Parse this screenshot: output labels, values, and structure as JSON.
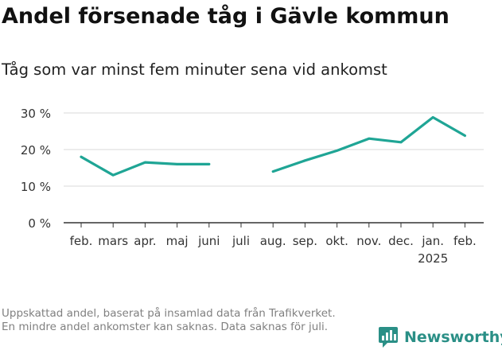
{
  "header": {
    "title": "Andel försenade tåg i Gävle kommun",
    "subtitle": "Tåg som var minst fem minuter sena vid ankomst"
  },
  "footer": {
    "note": "Uppskattad andel, baserat på insamlad data från Trafikverket. En mindre andel ankomster kan saknas. Data saknas för juli.",
    "brand": "Newsworthy"
  },
  "colors": {
    "line": "#1fa595",
    "grid": "#d9d9d9",
    "axis": "#333333",
    "brand": "#2a8f86"
  },
  "chart_data": {
    "type": "line",
    "categories": [
      "feb.",
      "mars",
      "apr.",
      "maj",
      "juni",
      "juli",
      "aug.",
      "sep.",
      "okt.",
      "nov.",
      "dec.",
      "jan.",
      "feb."
    ],
    "year_label": {
      "index": 11,
      "text": "2025"
    },
    "series": [
      {
        "values": [
          18,
          13,
          16.5,
          16,
          16,
          null,
          14,
          17,
          19.7,
          23,
          22,
          28.8,
          23.8
        ]
      }
    ],
    "ylim": [
      0,
      30
    ],
    "yticks": [
      0,
      10,
      20,
      30
    ],
    "ytick_labels": [
      "0 %",
      "10 %",
      "20 %",
      "30 %"
    ],
    "grid": true
  }
}
